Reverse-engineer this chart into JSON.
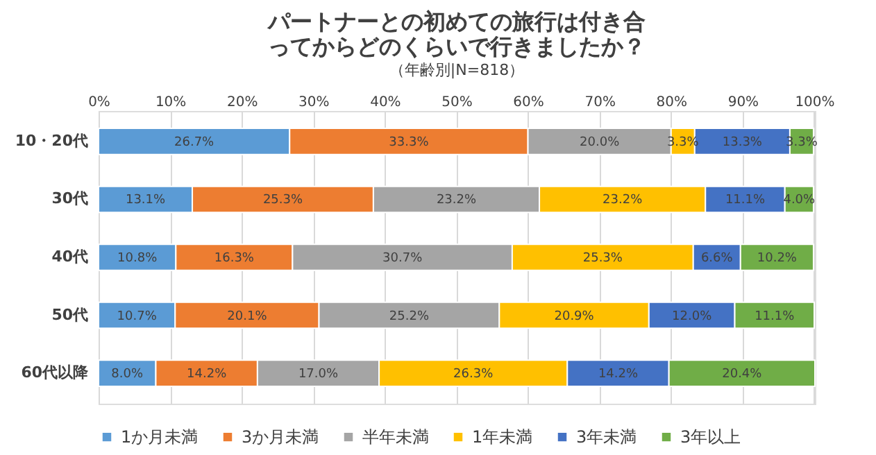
{
  "chart_data": {
    "type": "bar",
    "orientation": "horizontal",
    "stacked": true,
    "title": "パートナーとの初めての旅行は付き合ってからどのくらいで行きましたか？",
    "subtitle": "（年齢別|N=818）",
    "categories": [
      "10・20代",
      "30代",
      "40代",
      "50代",
      "60代以降"
    ],
    "series": [
      {
        "name": "1か月未満",
        "color": "#5b9bd5",
        "values": [
          26.7,
          13.1,
          10.8,
          10.7,
          8.0
        ],
        "value_labels": [
          "26.7%",
          "13.1%",
          "10.8%",
          "10.7%",
          "8.0%"
        ]
      },
      {
        "name": "3か月未満",
        "color": "#ed7d31",
        "values": [
          33.3,
          25.3,
          16.3,
          20.1,
          14.2
        ],
        "value_labels": [
          "33.3%",
          "25.3%",
          "16.3%",
          "20.1%",
          "14.2%"
        ]
      },
      {
        "name": "半年未満",
        "color": "#a5a5a5",
        "values": [
          20.0,
          23.2,
          30.7,
          25.2,
          17.0
        ],
        "value_labels": [
          "20.0%",
          "23.2%",
          "30.7%",
          "25.2%",
          "17.0%"
        ]
      },
      {
        "name": "1年未満",
        "color": "#ffc000",
        "values": [
          3.3,
          23.2,
          25.3,
          20.9,
          26.3
        ],
        "value_labels": [
          "3.3%",
          "23.2%",
          "25.3%",
          "20.9%",
          "26.3%"
        ]
      },
      {
        "name": "3年未満",
        "color": "#4472c4",
        "values": [
          13.3,
          11.1,
          6.6,
          12.0,
          14.2
        ],
        "value_labels": [
          "13.3%",
          "11.1%",
          "6.6%",
          "12.0%",
          "14.2%"
        ]
      },
      {
        "name": "3年以上",
        "color": "#70ad47",
        "values": [
          3.3,
          4.0,
          10.2,
          11.1,
          20.4
        ],
        "value_labels": [
          "3.3%",
          "4.0%",
          "10.2%",
          "11.1%",
          "20.4%"
        ]
      }
    ],
    "xlim": [
      0,
      100.1
    ],
    "xticks": [
      {
        "value": 0,
        "label": "0%"
      },
      {
        "value": 10,
        "label": "10%"
      },
      {
        "value": 20,
        "label": "20%"
      },
      {
        "value": 30,
        "label": "30%"
      },
      {
        "value": 40,
        "label": "40%"
      },
      {
        "value": 50,
        "label": "50%"
      },
      {
        "value": 60,
        "label": "60%"
      },
      {
        "value": 70,
        "label": "70%"
      },
      {
        "value": 80,
        "label": "80%"
      },
      {
        "value": 90,
        "label": "90%"
      },
      {
        "value": 100,
        "label": "100%"
      }
    ],
    "grid": "x",
    "legend": "bottom"
  }
}
